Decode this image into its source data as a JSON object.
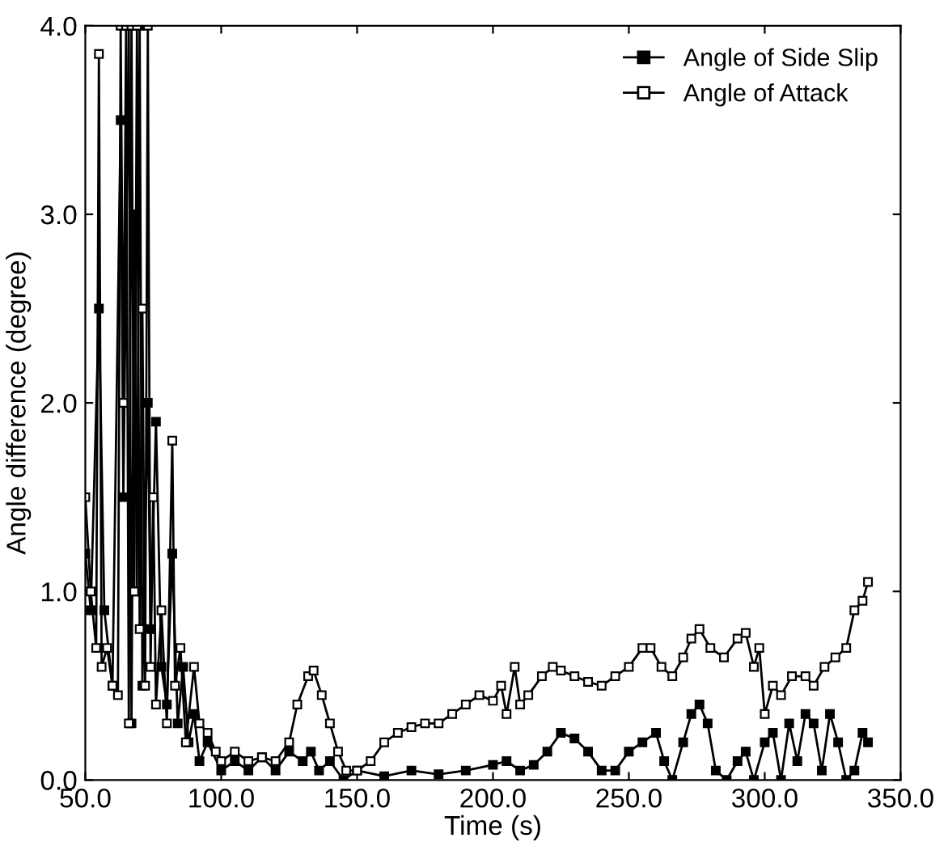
{
  "chart_data": {
    "type": "line",
    "xlabel": "Time (s)",
    "ylabel": "Angle difference (degree)",
    "xlim": [
      50,
      350
    ],
    "ylim": [
      0,
      4
    ],
    "xticks": [
      {
        "value": 50,
        "label": "50.0"
      },
      {
        "value": 100,
        "label": "100.0"
      },
      {
        "value": 150,
        "label": "150.0"
      },
      {
        "value": 200,
        "label": "200.0"
      },
      {
        "value": 250,
        "label": "250.0"
      },
      {
        "value": 300,
        "label": "300.0"
      },
      {
        "value": 350,
        "label": "350.0"
      }
    ],
    "yticks": [
      {
        "value": 0,
        "label": "0.0"
      },
      {
        "value": 1,
        "label": "1.0"
      },
      {
        "value": 2,
        "label": "2.0"
      },
      {
        "value": 3,
        "label": "3.0"
      },
      {
        "value": 4,
        "label": "4.0"
      }
    ],
    "grid": false,
    "legend": "top right",
    "marker": "square",
    "line_style": "solid",
    "series": [
      {
        "name": "Angle of Side Slip",
        "color": "#000000",
        "x": [
          50,
          52,
          55,
          57,
          60,
          63,
          64,
          66,
          67,
          68,
          69,
          70,
          71,
          73,
          74,
          76,
          78,
          80,
          82,
          84,
          86,
          88,
          90,
          92,
          95,
          100,
          105,
          110,
          115,
          120,
          125,
          130,
          133,
          136,
          140,
          145,
          150,
          160,
          170,
          180,
          190,
          200,
          205,
          210,
          215,
          220,
          225,
          230,
          235,
          240,
          245,
          250,
          255,
          260,
          263,
          266,
          270,
          273,
          276,
          279,
          282,
          286,
          290,
          293,
          296,
          300,
          303,
          306,
          309,
          312,
          315,
          318,
          321,
          324,
          327,
          330,
          333,
          336,
          338
        ],
        "values": [
          1.2,
          0.9,
          2.5,
          0.9,
          0.5,
          3.5,
          1.5,
          4.0,
          0.3,
          3.0,
          1.0,
          4.0,
          0.5,
          2.0,
          0.8,
          1.9,
          0.6,
          0.4,
          1.2,
          0.3,
          0.6,
          0.2,
          0.35,
          0.1,
          0.2,
          0.05,
          0.1,
          0.05,
          0.12,
          0.05,
          0.15,
          0.1,
          0.15,
          0.05,
          0.1,
          0.0,
          0.05,
          0.02,
          0.05,
          0.03,
          0.05,
          0.08,
          0.1,
          0.05,
          0.08,
          0.15,
          0.25,
          0.22,
          0.15,
          0.05,
          0.05,
          0.15,
          0.2,
          0.25,
          0.1,
          0.0,
          0.2,
          0.35,
          0.4,
          0.3,
          0.05,
          0.0,
          0.1,
          0.15,
          0.0,
          0.2,
          0.25,
          0.0,
          0.3,
          0.1,
          0.35,
          0.3,
          0.05,
          0.35,
          0.2,
          0.0,
          0.05,
          0.25,
          0.2
        ]
      },
      {
        "name": "Angle of Attack",
        "color": "#000000",
        "x": [
          50,
          52,
          54,
          55,
          56,
          58,
          60,
          62,
          63,
          64,
          65,
          66,
          67,
          68,
          69,
          70,
          71,
          72,
          73,
          74,
          75,
          76,
          78,
          80,
          82,
          83,
          85,
          87,
          90,
          92,
          95,
          98,
          100,
          105,
          110,
          115,
          120,
          125,
          128,
          132,
          134,
          137,
          140,
          143,
          146,
          150,
          155,
          160,
          165,
          170,
          175,
          180,
          185,
          190,
          195,
          200,
          203,
          205,
          208,
          210,
          213,
          218,
          222,
          225,
          230,
          235,
          240,
          245,
          250,
          255,
          258,
          262,
          266,
          270,
          273,
          276,
          280,
          285,
          290,
          293,
          296,
          298,
          300,
          303,
          306,
          310,
          315,
          318,
          322,
          326,
          330,
          333,
          336,
          338
        ],
        "values": [
          1.5,
          1.0,
          0.7,
          3.85,
          0.6,
          0.7,
          0.5,
          0.45,
          4.0,
          2.0,
          4.0,
          0.3,
          4.0,
          1.0,
          4.0,
          0.8,
          2.5,
          0.5,
          4.0,
          0.6,
          1.5,
          0.4,
          0.9,
          0.3,
          1.8,
          0.5,
          0.7,
          0.2,
          0.6,
          0.3,
          0.25,
          0.15,
          0.1,
          0.15,
          0.1,
          0.12,
          0.1,
          0.2,
          0.4,
          0.55,
          0.58,
          0.45,
          0.3,
          0.15,
          0.05,
          0.05,
          0.1,
          0.2,
          0.25,
          0.28,
          0.3,
          0.3,
          0.35,
          0.4,
          0.45,
          0.42,
          0.5,
          0.35,
          0.6,
          0.4,
          0.45,
          0.55,
          0.6,
          0.58,
          0.55,
          0.52,
          0.5,
          0.55,
          0.6,
          0.7,
          0.7,
          0.6,
          0.55,
          0.65,
          0.75,
          0.8,
          0.7,
          0.65,
          0.75,
          0.78,
          0.6,
          0.7,
          0.35,
          0.5,
          0.45,
          0.55,
          0.55,
          0.5,
          0.6,
          0.65,
          0.7,
          0.9,
          0.95,
          1.05
        ]
      }
    ]
  }
}
